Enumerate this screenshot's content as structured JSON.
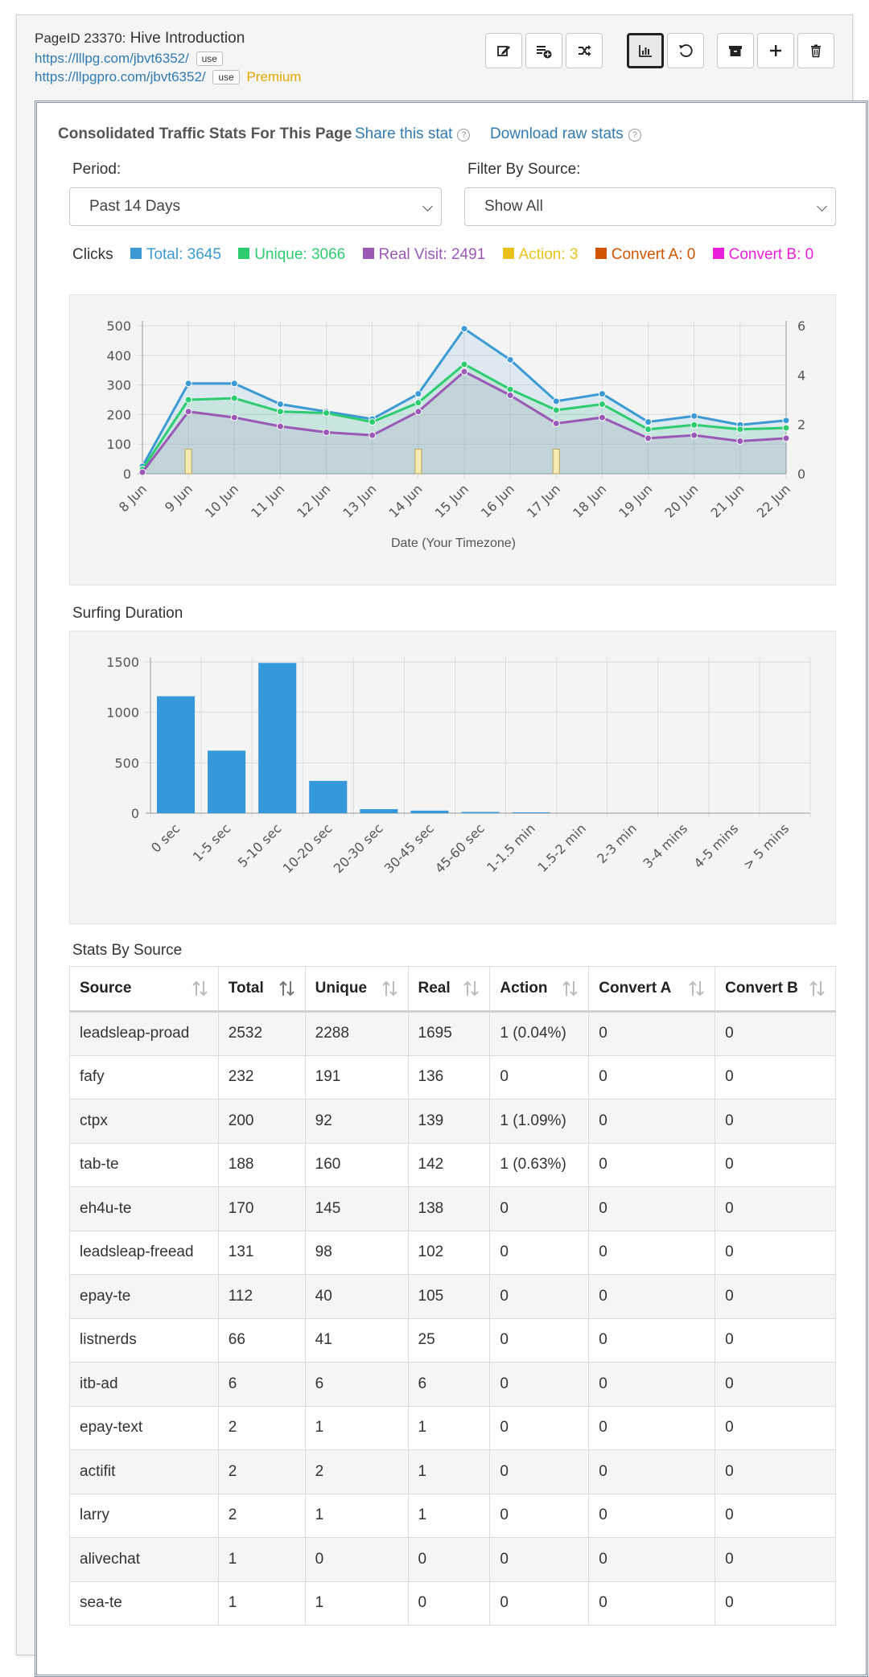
{
  "header": {
    "page_id_label": "PageID 23370:",
    "title": "Hive Introduction",
    "link1": "https://lllpg.com/jbvt6352/",
    "link2": "https://llpgpro.com/jbvt6352/",
    "use_label": "use",
    "premium_label": "Premium"
  },
  "toolbar": {
    "icons": [
      "edit-icon",
      "playlist-add-icon",
      "shuffle-icon",
      "stats-icon",
      "reset-icon",
      "archive-icon",
      "plus-icon",
      "trash-icon"
    ],
    "active": "stats-icon"
  },
  "stats": {
    "title": "Consolidated Traffic Stats For This Page",
    "share_link": "Share this stat",
    "download_link": "Download raw stats",
    "help_glyph": "?",
    "period_label": "Period:",
    "period_value": "Past 14 Days",
    "filter_label": "Filter By Source:",
    "filter_value": "Show All"
  },
  "legend": {
    "prefix": "Clicks",
    "items": [
      {
        "label": "Total: 3645",
        "color": "#3b9ad3"
      },
      {
        "label": "Unique: 3066",
        "color": "#2ecc71"
      },
      {
        "label": "Real Visit: 2491",
        "color": "#9b59b6"
      },
      {
        "label": "Action: 3",
        "color": "#e8c21a"
      },
      {
        "label": "Convert A: 0",
        "color": "#d35400"
      },
      {
        "label": "Convert B: 0",
        "color": "#e91ed9"
      }
    ]
  },
  "chart_data": [
    {
      "type": "line",
      "categories": [
        "8 Jun",
        "9 Jun",
        "10 Jun",
        "11 Jun",
        "12 Jun",
        "13 Jun",
        "14 Jun",
        "15 Jun",
        "16 Jun",
        "17 Jun",
        "18 Jun",
        "19 Jun",
        "20 Jun",
        "21 Jun",
        "22 Jun"
      ],
      "xlabel": "Date (Your Timezone)",
      "ylim": [
        0,
        500
      ],
      "yticks": [
        0,
        100,
        200,
        300,
        400,
        500
      ],
      "y2lim": [
        0,
        6
      ],
      "y2ticks": [
        0,
        2,
        4,
        6
      ],
      "series": [
        {
          "name": "Total",
          "color": "#3b9ad3",
          "values": [
            25,
            305,
            305,
            235,
            210,
            185,
            270,
            490,
            385,
            245,
            270,
            175,
            195,
            165,
            180
          ]
        },
        {
          "name": "Unique",
          "color": "#2ecc71",
          "values": [
            15,
            250,
            255,
            210,
            205,
            175,
            240,
            370,
            285,
            215,
            235,
            150,
            165,
            150,
            155
          ]
        },
        {
          "name": "Real Visit",
          "color": "#9b59b6",
          "values": [
            5,
            210,
            190,
            160,
            140,
            130,
            210,
            345,
            265,
            170,
            190,
            120,
            130,
            110,
            120
          ]
        },
        {
          "name": "Action",
          "color": "#e8c21a",
          "axis": "y2",
          "type": "bar",
          "values": [
            0,
            1,
            0,
            0,
            0,
            0,
            1,
            0,
            0,
            1,
            0,
            0,
            0,
            0,
            0
          ]
        }
      ],
      "grid": true
    },
    {
      "type": "bar",
      "title": "Surfing Duration",
      "categories": [
        "0 sec",
        "1-5 sec",
        "5-10 sec",
        "10-20 sec",
        "20-30 sec",
        "30-45 sec",
        "45-60 sec",
        "1-1.5 min",
        "1.5-2 min",
        "2-3 min",
        "3-4 mins",
        "4-5 mins",
        "> 5 mins"
      ],
      "values": [
        1160,
        620,
        1490,
        320,
        40,
        25,
        12,
        8,
        0,
        0,
        0,
        0,
        0
      ],
      "ylim": [
        0,
        1500
      ],
      "yticks": [
        0,
        500,
        1000,
        1500
      ],
      "color": "#3498db",
      "grid": true
    }
  ],
  "table": {
    "title": "Stats By Source",
    "columns": [
      "Source",
      "Total",
      "Unique",
      "Real",
      "Action",
      "Convert A",
      "Convert B"
    ],
    "sorted_column": "Total",
    "rows": [
      [
        "leadsleap-proad",
        "2532",
        "2288",
        "1695",
        "1 (0.04%)",
        "0",
        "0"
      ],
      [
        "fafy",
        "232",
        "191",
        "136",
        "0",
        "0",
        "0"
      ],
      [
        "ctpx",
        "200",
        "92",
        "139",
        "1 (1.09%)",
        "0",
        "0"
      ],
      [
        "tab-te",
        "188",
        "160",
        "142",
        "1 (0.63%)",
        "0",
        "0"
      ],
      [
        "eh4u-te",
        "170",
        "145",
        "138",
        "0",
        "0",
        "0"
      ],
      [
        "leadsleap-freead",
        "131",
        "98",
        "102",
        "0",
        "0",
        "0"
      ],
      [
        "epay-te",
        "112",
        "40",
        "105",
        "0",
        "0",
        "0"
      ],
      [
        "listnerds",
        "66",
        "41",
        "25",
        "0",
        "0",
        "0"
      ],
      [
        "itb-ad",
        "6",
        "6",
        "6",
        "0",
        "0",
        "0"
      ],
      [
        "epay-text",
        "2",
        "1",
        "1",
        "0",
        "0",
        "0"
      ],
      [
        "actifit",
        "2",
        "2",
        "1",
        "0",
        "0",
        "0"
      ],
      [
        "larry",
        "2",
        "1",
        "1",
        "0",
        "0",
        "0"
      ],
      [
        "alivechat",
        "1",
        "0",
        "0",
        "0",
        "0",
        "0"
      ],
      [
        "sea-te",
        "1",
        "1",
        "0",
        "0",
        "0",
        "0"
      ]
    ]
  }
}
